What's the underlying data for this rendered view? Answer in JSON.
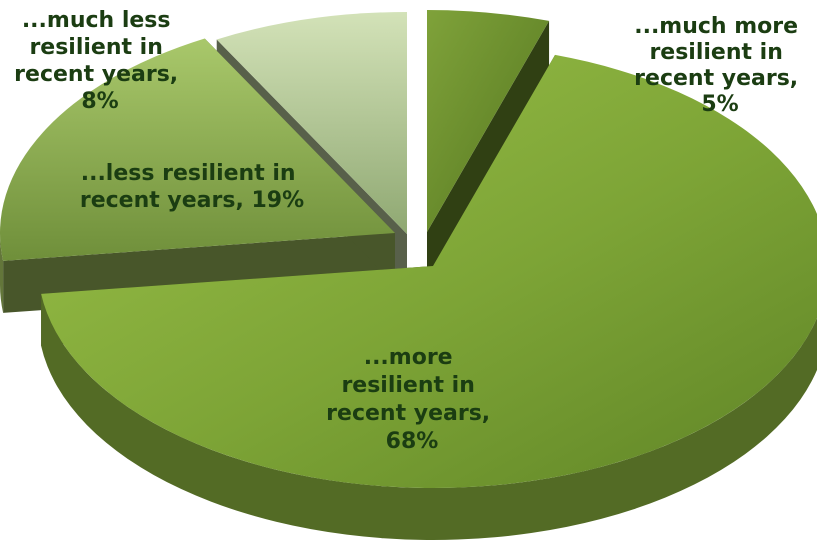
{
  "chart_data": {
    "type": "pie",
    "style": "3d-exploded",
    "slices": [
      {
        "label": "...much more resilient in recent years",
        "value": 5,
        "color": "#6a8f2a"
      },
      {
        "label": "...more resilient in recent years",
        "value": 68,
        "color": "#86ad3c"
      },
      {
        "label": "...less resilient in recent years",
        "value": 19,
        "color": "#9fbe5e"
      },
      {
        "label": "...much less resilient in recent years",
        "value": 8,
        "color": "#c4d6a4"
      }
    ],
    "data_labels": [
      {
        "lines": [
          "...much more",
          "resilient in",
          "recent years,",
          "5%"
        ]
      },
      {
        "lines": [
          "...more",
          "resilient in",
          "recent years,",
          "68%"
        ]
      },
      {
        "lines": [
          "...less resilient in",
          "recent years, 19%"
        ]
      },
      {
        "lines": [
          "...much less",
          "resilient in",
          "recent years,",
          "8%"
        ]
      }
    ]
  }
}
